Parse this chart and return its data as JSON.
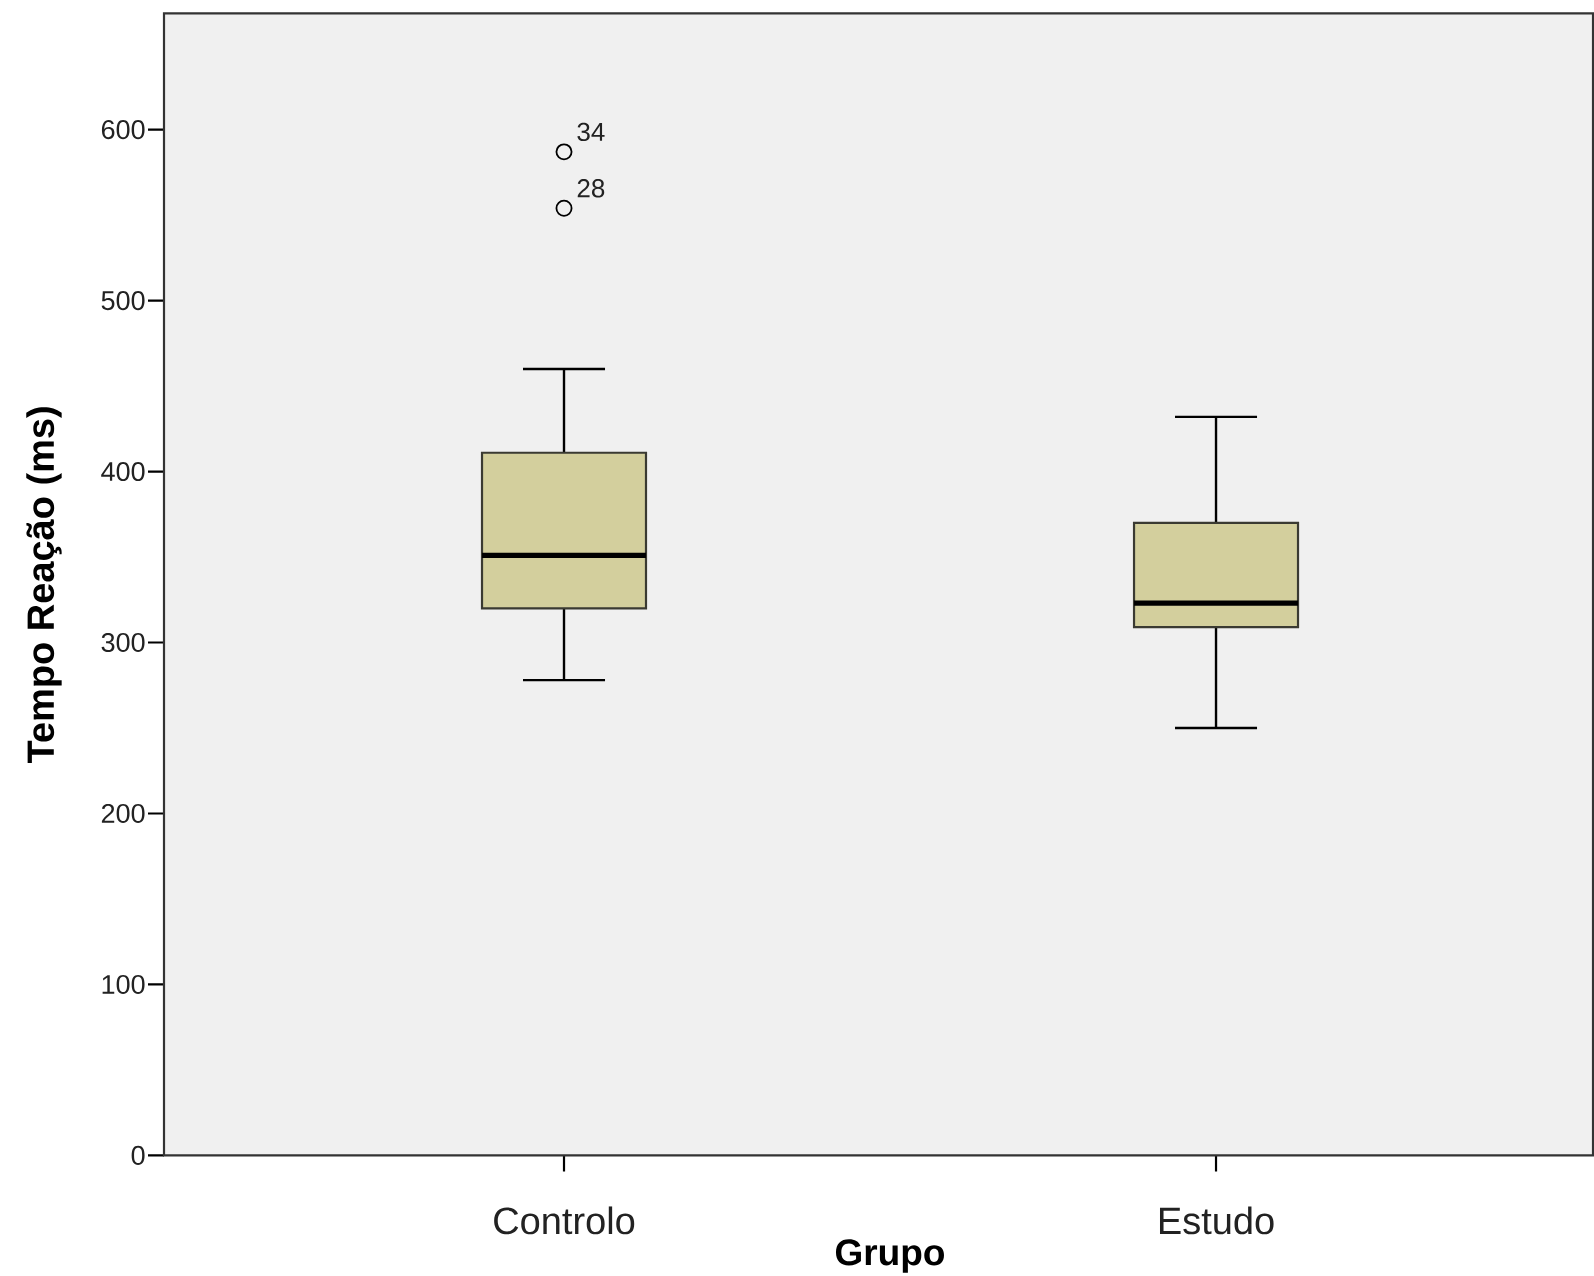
{
  "chart_data": {
    "type": "box",
    "xlabel": "Grupo",
    "ylabel": "Tempo Reação (ms)",
    "categories": [
      "Controlo",
      "Estudo"
    ],
    "color": "#d3cf9d",
    "boxes": [
      {
        "low": 278,
        "q1": 320,
        "median": 351,
        "q3": 411,
        "high": 460,
        "outliers": [
          587,
          554
        ]
      },
      {
        "low": 250,
        "q1": 309,
        "median": 323,
        "q3": 370,
        "high": 432
      }
    ],
    "ylim": [
      0,
      668
    ],
    "yticks": [
      0,
      100,
      200,
      300,
      400,
      500,
      600
    ],
    "grid": false,
    "annotations": [
      "34",
      "28"
    ]
  }
}
